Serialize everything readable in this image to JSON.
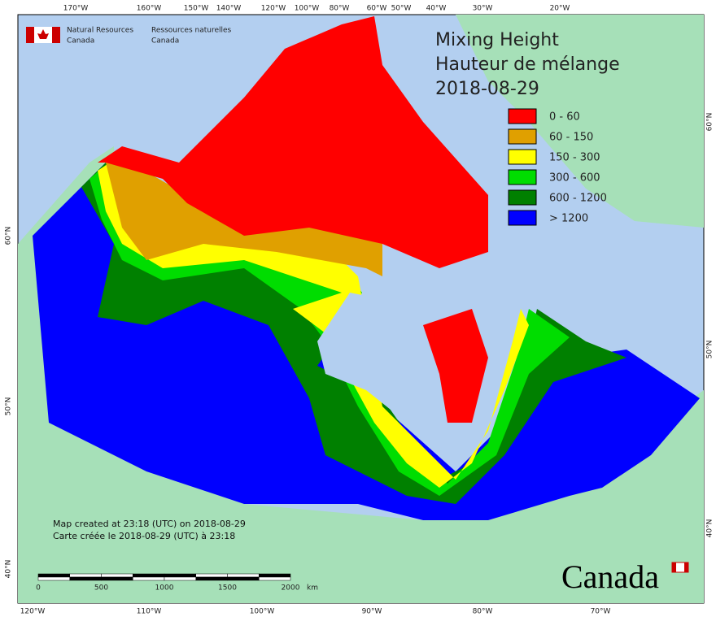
{
  "header": {
    "org_en": [
      "Natural Resources",
      "Canada"
    ],
    "org_fr": [
      "Ressources naturelles",
      "Canada"
    ]
  },
  "title": [
    "Mixing Height",
    "Hauteur de mélange",
    "2018-08-29"
  ],
  "legend": [
    {
      "label": "0 - 60",
      "color": "#ff0000"
    },
    {
      "label": "60 - 150",
      "color": "#e0a000"
    },
    {
      "label": "150 - 300",
      "color": "#ffff00"
    },
    {
      "label": "300 - 600",
      "color": "#00dd00"
    },
    {
      "label": "600 - 1200",
      "color": "#008000"
    },
    {
      "label": "> 1200",
      "color": "#0000ff"
    }
  ],
  "top_labels": [
    "170°W",
    "160°W",
    "150°W",
    "140°W",
    "120°W",
    "100°W",
    "80°W",
    "60°W",
    "50°W",
    "40°W",
    "30°W",
    "20°W"
  ],
  "bottom_labels": [
    "120°W",
    "110°W",
    "100°W",
    "90°W",
    "80°W",
    "70°W"
  ],
  "left_labels": [
    "60°N",
    "50°N",
    "40°N"
  ],
  "right_labels": [
    "60°N",
    "50°N",
    "40°N"
  ],
  "credit": [
    "Map created at 23:18 (UTC) on 2018-08-29",
    "Carte créée le 2018-08-29 (UTC) à 23:18"
  ],
  "scale": {
    "ticks": [
      0,
      500,
      1000,
      1500,
      2000
    ],
    "unit": "km"
  },
  "wordmark": "Canada"
}
